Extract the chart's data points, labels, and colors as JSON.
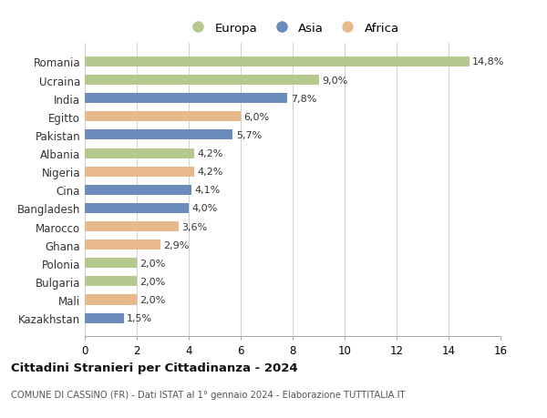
{
  "countries": [
    "Romania",
    "Ucraina",
    "India",
    "Egitto",
    "Pakistan",
    "Albania",
    "Nigeria",
    "Cina",
    "Bangladesh",
    "Marocco",
    "Ghana",
    "Polonia",
    "Bulgaria",
    "Mali",
    "Kazakhstan"
  ],
  "values": [
    14.8,
    9.0,
    7.8,
    6.0,
    5.7,
    4.2,
    4.2,
    4.1,
    4.0,
    3.6,
    2.9,
    2.0,
    2.0,
    2.0,
    1.5
  ],
  "labels": [
    "14,8%",
    "9,0%",
    "7,8%",
    "6,0%",
    "5,7%",
    "4,2%",
    "4,2%",
    "4,1%",
    "4,0%",
    "3,6%",
    "2,9%",
    "2,0%",
    "2,0%",
    "2,0%",
    "1,5%"
  ],
  "continents": [
    "Europa",
    "Europa",
    "Asia",
    "Africa",
    "Asia",
    "Europa",
    "Africa",
    "Asia",
    "Asia",
    "Africa",
    "Africa",
    "Europa",
    "Europa",
    "Africa",
    "Asia"
  ],
  "colors": {
    "Europa": "#b5c98e",
    "Asia": "#6b8cba",
    "Africa": "#e8b98a"
  },
  "legend_order": [
    "Europa",
    "Asia",
    "Africa"
  ],
  "xlim": [
    0,
    16
  ],
  "xticks": [
    0,
    2,
    4,
    6,
    8,
    10,
    12,
    14,
    16
  ],
  "title": "Cittadini Stranieri per Cittadinanza - 2024",
  "subtitle": "COMUNE DI CASSINO (FR) - Dati ISTAT al 1° gennaio 2024 - Elaborazione TUTTITALIA.IT",
  "background_color": "#ffffff",
  "grid_color": "#d0d0d0",
  "bar_height": 0.55
}
